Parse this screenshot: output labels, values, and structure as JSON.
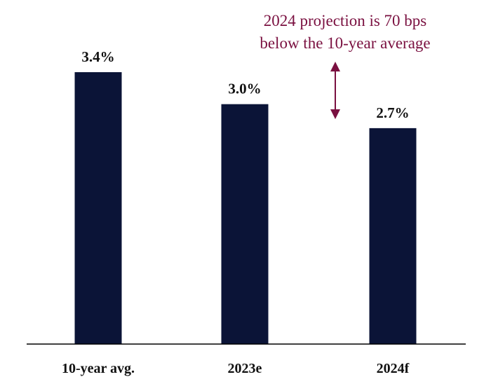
{
  "chart_data": {
    "type": "bar",
    "categories": [
      "10-year avg.",
      "2023e",
      "2024f"
    ],
    "values": [
      3.4,
      3.0,
      2.7
    ],
    "value_labels": [
      "3.4%",
      "3.0%",
      "2.7%"
    ],
    "ylim": [
      0,
      3.4
    ],
    "grid": false,
    "legend": "none",
    "colors": {
      "bar": "#0b1437",
      "annotation": "#7a1040",
      "axis": "#000000"
    },
    "annotation": {
      "lines": [
        "2024 projection is 70 bps",
        "below the 10-year average"
      ],
      "arrow_from": 3.4,
      "arrow_to": 2.7
    }
  }
}
